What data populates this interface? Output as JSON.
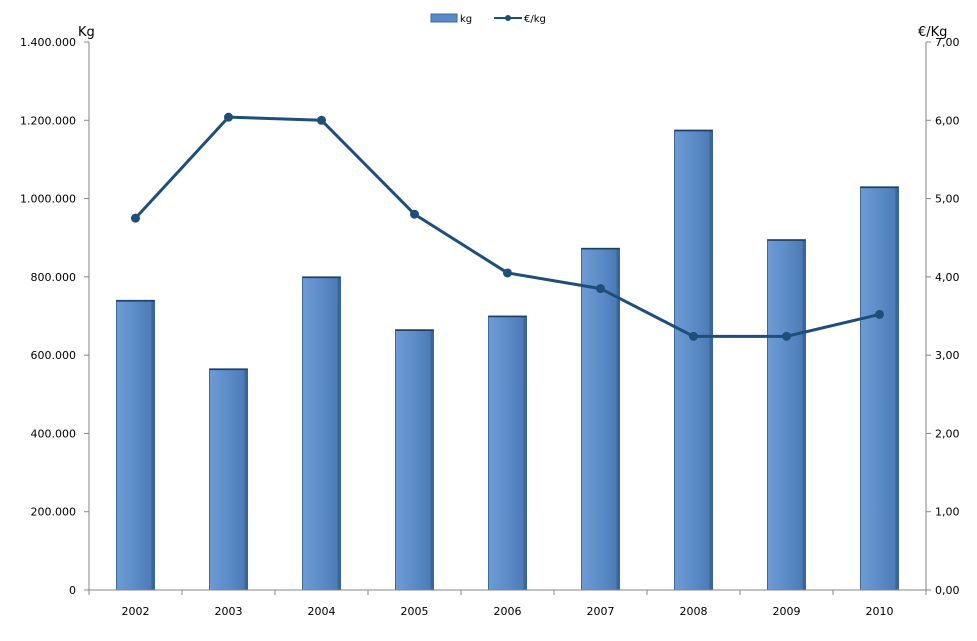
{
  "chart_data": {
    "type": "bar",
    "categories": [
      "2002",
      "2003",
      "2004",
      "2005",
      "2006",
      "2007",
      "2008",
      "2009",
      "2010"
    ],
    "series": [
      {
        "name": "kg",
        "type": "bar",
        "axis": "left",
        "values": [
          740000,
          565000,
          800000,
          665000,
          700000,
          873000,
          1175000,
          895000,
          1030000
        ]
      },
      {
        "name": "€/kg",
        "type": "line",
        "axis": "right",
        "values": [
          4.75,
          6.04,
          6.0,
          4.8,
          4.05,
          3.85,
          3.24,
          3.24,
          3.52
        ]
      }
    ],
    "ylabel": "Kg",
    "y2label": "€/Kg",
    "ylim": [
      0,
      1400000
    ],
    "y2lim": [
      0,
      7
    ],
    "y_ticks": [
      "0",
      "200.000",
      "400.000",
      "600.000",
      "800.000",
      "1.000.000",
      "1.200.000",
      "1.400.000"
    ],
    "y2_ticks": [
      "0,00",
      "1,00",
      "2,00",
      "3,00",
      "4,00",
      "5,00",
      "6,00",
      "7,00"
    ],
    "legend_position": "top",
    "grid": false,
    "colors": {
      "bar": "#5a8ac6",
      "bar_edge": "#3d6a9e",
      "line": "#1f4e79"
    }
  }
}
